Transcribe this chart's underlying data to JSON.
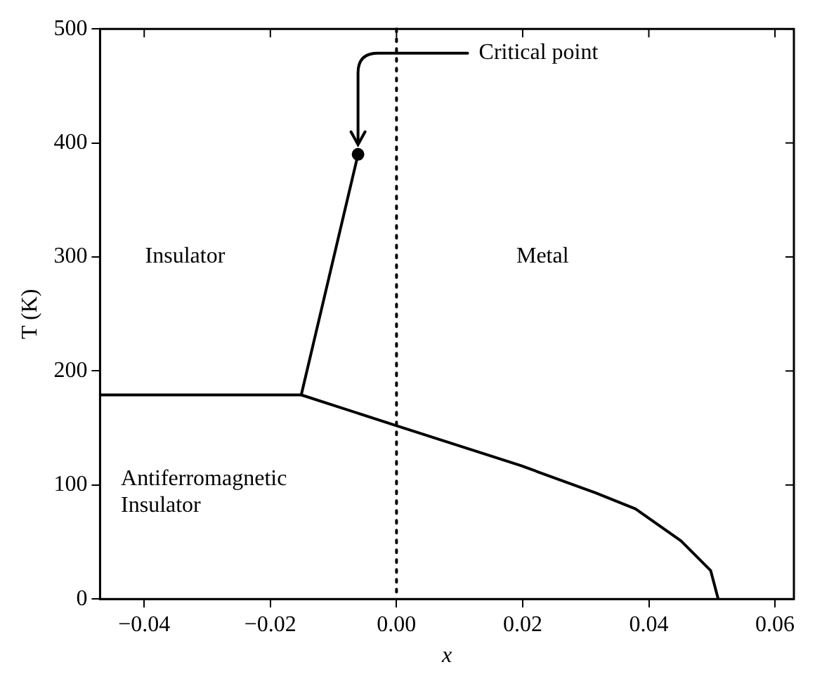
{
  "chart_data": {
    "type": "line",
    "xlabel": "x",
    "ylabel": "T (K)",
    "xlim": [
      -0.047,
      0.063
    ],
    "ylim": [
      0,
      500
    ],
    "xticks": [
      {
        "value": -0.04,
        "label": "−0.04"
      },
      {
        "value": -0.02,
        "label": "−0.02"
      },
      {
        "value": 0,
        "label": "0.00"
      },
      {
        "value": 0.02,
        "label": "0.02"
      },
      {
        "value": 0.04,
        "label": "0.04"
      },
      {
        "value": 0.06,
        "label": "0.06"
      }
    ],
    "yticks": [
      0,
      100,
      200,
      300,
      400,
      500
    ],
    "grid": false,
    "legend": false,
    "marker": "none",
    "line_style": "solid",
    "series": [
      {
        "color": "#000000",
        "x": [
          -0.0151,
          -0.0061
        ],
        "values": [
          179,
          390
        ]
      },
      {
        "color": "#000000",
        "x": [
          -0.047,
          -0.0151,
          0,
          0.0197,
          0.0316,
          0.0379,
          0.0451,
          0.0498,
          0.051
        ],
        "values": [
          179,
          179,
          152,
          117,
          93,
          79,
          51,
          25,
          0
        ]
      },
      {
        "type": "scatter",
        "marker": "circle",
        "color": "#000000",
        "x": [
          -0.0061
        ],
        "values": [
          390
        ]
      }
    ],
    "ref_lines": [
      {
        "axis": "x",
        "value": 0,
        "line_style": "dotted",
        "color": "#000000"
      }
    ],
    "annotations": [
      {
        "text": "Critical point",
        "x": -0.0061,
        "y": 390
      },
      "Insulator",
      "Metal",
      "Antiferromagnetic\nInsulator"
    ]
  }
}
